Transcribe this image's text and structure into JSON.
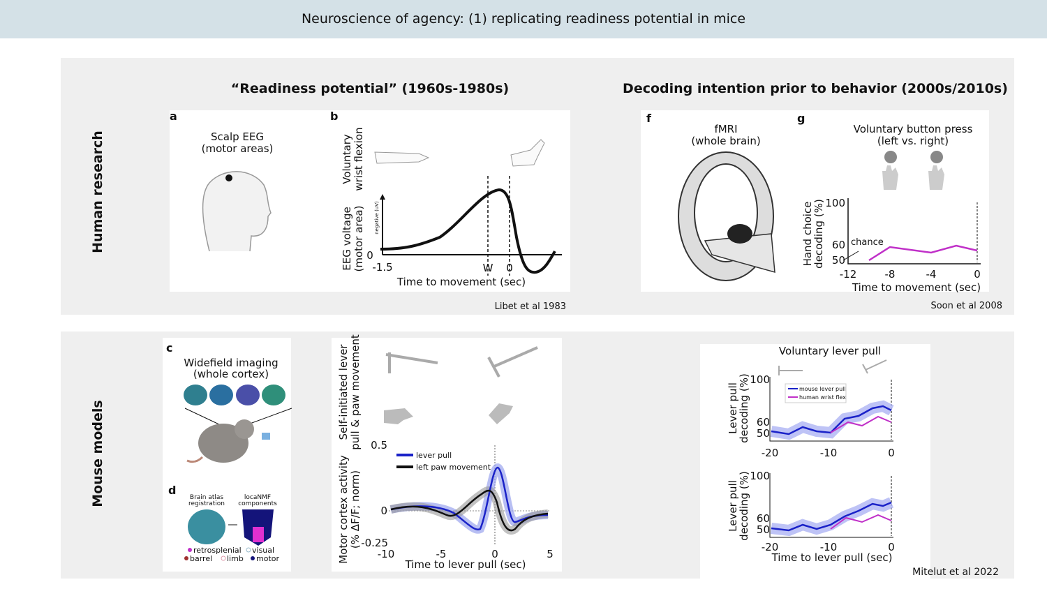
{
  "header": {
    "title": "Neuroscience of agency: (1) replicating readiness potential in mice"
  },
  "human": {
    "row_label": "Human research",
    "left_title": "“Readiness potential” (1960s-1980s)",
    "right_title": "Decoding intention prior to behavior (2000s/2010s)",
    "panel_a": {
      "letter": "a",
      "caption": [
        "Scalp EEG",
        "(motor areas)"
      ]
    },
    "panel_b": {
      "letter": "b",
      "y_label_top": [
        "Voluntary",
        "wrist flexion"
      ],
      "y_label_bottom": [
        "EEG voltage",
        "(motor area)"
      ],
      "arrow_label": "negative (uV)",
      "y_tick": "0",
      "x_ticks": [
        "-1.5",
        "W",
        "0"
      ],
      "x_label": "Time to movement (sec)"
    },
    "citation_left": "Libet et al 1983",
    "panel_f": {
      "letter": "f",
      "caption": [
        "fMRI",
        "(whole brain)"
      ]
    },
    "panel_g": {
      "letter": "g",
      "title": [
        "Voluntary button press",
        "(left vs. right)"
      ],
      "y_label": [
        "Hand choice",
        "decoding (%)"
      ],
      "y_ticks": [
        "100",
        "60",
        "50"
      ],
      "chance_label": "chance",
      "x_ticks": [
        "-12",
        "-8",
        "-4",
        "0"
      ],
      "x_label": "Time to movement (sec)"
    },
    "citation_right": "Soon et al 2008"
  },
  "mouse": {
    "row_label": "Mouse models",
    "panel_c": {
      "letter": "c",
      "caption": [
        "Widefield imaging",
        "(whole cortex)"
      ]
    },
    "panel_d": {
      "letter": "d",
      "left_caption": [
        "Brain atlas",
        "registration"
      ],
      "right_caption": [
        "locaNMF",
        "components"
      ],
      "legend": [
        "retrosplenial",
        "visual",
        "barrel",
        "limb",
        "motor"
      ]
    },
    "panel_e": {
      "y_label_top": [
        "Self-initiated lever",
        "pull & paw movement"
      ],
      "y_label_bottom": [
        "Motor cortex activity",
        "(% ΔF/F; norm)"
      ],
      "y_ticks": [
        "0.5",
        "0",
        "-0.25"
      ],
      "x_ticks": [
        "-10",
        "-5",
        "0",
        "5"
      ],
      "x_label": "Time to lever pull (sec)",
      "legend": [
        "lever pull",
        "left paw movement"
      ]
    },
    "panel_h": {
      "title": "Voluntary lever pull",
      "legend": [
        "mouse lever pull",
        "human wrist flex"
      ],
      "y_label": [
        "Lever pull",
        "decoding (%)"
      ],
      "y_ticks": [
        "100",
        "60",
        "50"
      ],
      "x_ticks": [
        "-20",
        "-10",
        "0"
      ],
      "x_label": "Time to lever pull (sec)"
    },
    "citation": "Mitelut et al 2022"
  }
}
